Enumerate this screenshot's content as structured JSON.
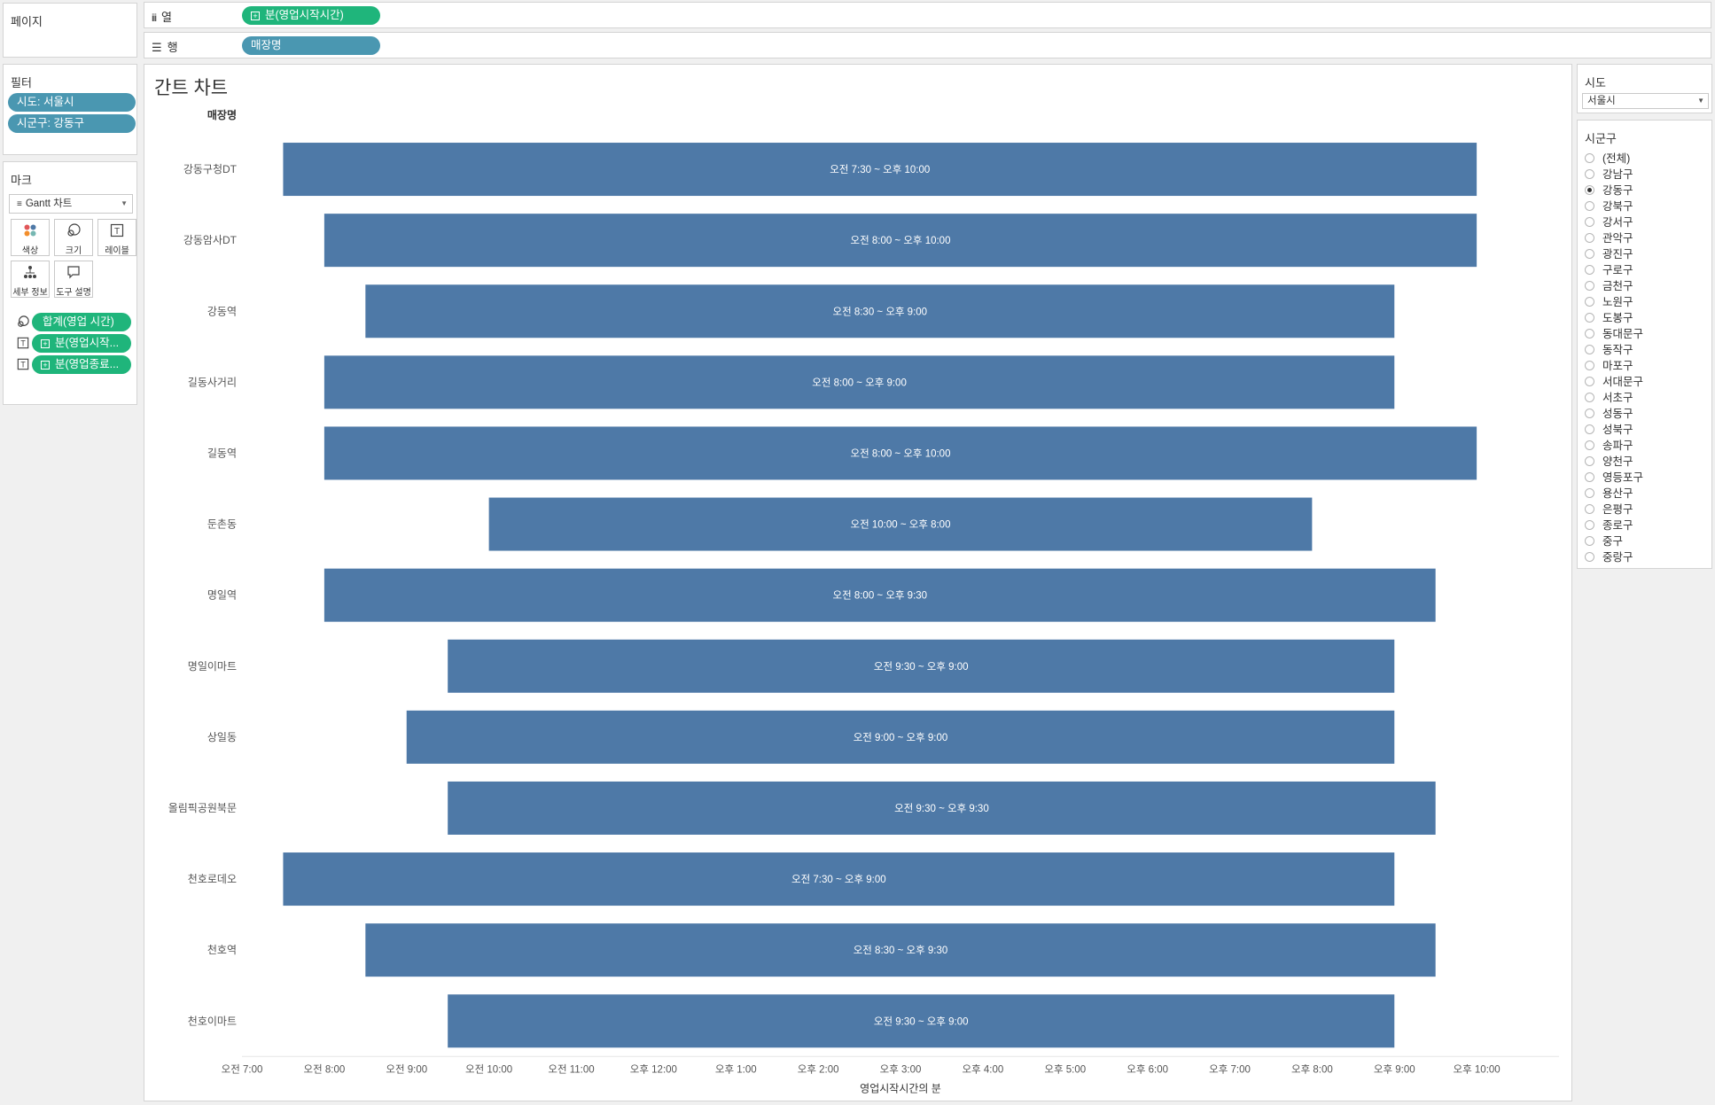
{
  "pages_panel": {
    "title": "페이지"
  },
  "columns_shelf": {
    "label": "열",
    "icon": "columns-icon",
    "pill": "분(영업시작시간)"
  },
  "rows_shelf": {
    "label": "행",
    "icon": "rows-icon",
    "pill": "매장명"
  },
  "filters": {
    "title": "필터",
    "items": [
      "시도: 서울시",
      "시군구: 강동구"
    ]
  },
  "marks": {
    "title": "마크",
    "mark_type": "Gantt 차트",
    "buttons": [
      {
        "label": "색상",
        "icon": "color-icon"
      },
      {
        "label": "크기",
        "icon": "size-icon"
      },
      {
        "label": "레이블",
        "icon": "label-icon"
      },
      {
        "label": "세부 정보",
        "icon": "detail-icon"
      },
      {
        "label": "도구 설명",
        "icon": "tooltip-icon"
      }
    ],
    "fields": [
      {
        "icon": "size-icon",
        "label": "합계(영업 시간)"
      },
      {
        "icon": "label-icon",
        "label": "분(영업시작..."
      },
      {
        "icon": "label-icon",
        "label": "분(영업종료..."
      }
    ]
  },
  "sido_filter": {
    "title": "시도",
    "value": "서울시"
  },
  "sigungu_filter": {
    "title": "시군구",
    "selected": "강동구",
    "options": [
      "(전체)",
      "강남구",
      "강동구",
      "강북구",
      "강서구",
      "관악구",
      "광진구",
      "구로구",
      "금천구",
      "노원구",
      "도봉구",
      "동대문구",
      "동작구",
      "마포구",
      "서대문구",
      "서초구",
      "성동구",
      "성북구",
      "송파구",
      "양천구",
      "영등포구",
      "용산구",
      "은평구",
      "종로구",
      "중구",
      "중랑구"
    ]
  },
  "chart_data": {
    "type": "gantt",
    "title": "간트 차트",
    "row_header": "매장명",
    "xlabel": "영업시작시간의 분",
    "color": "#4e79a7",
    "x_range_hours": [
      7,
      23
    ],
    "x_ticks": [
      {
        "hour": 7,
        "label": "오전 7:00"
      },
      {
        "hour": 8,
        "label": "오전 8:00"
      },
      {
        "hour": 9,
        "label": "오전 9:00"
      },
      {
        "hour": 10,
        "label": "오전 10:00"
      },
      {
        "hour": 11,
        "label": "오전 11:00"
      },
      {
        "hour": 12,
        "label": "오후 12:00"
      },
      {
        "hour": 13,
        "label": "오후 1:00"
      },
      {
        "hour": 14,
        "label": "오후 2:00"
      },
      {
        "hour": 15,
        "label": "오후 3:00"
      },
      {
        "hour": 16,
        "label": "오후 4:00"
      },
      {
        "hour": 17,
        "label": "오후 5:00"
      },
      {
        "hour": 18,
        "label": "오후 6:00"
      },
      {
        "hour": 19,
        "label": "오후 7:00"
      },
      {
        "hour": 20,
        "label": "오후 8:00"
      },
      {
        "hour": 21,
        "label": "오후 9:00"
      },
      {
        "hour": 22,
        "label": "오후 10:00"
      }
    ],
    "rows": [
      {
        "name": "강동구청DT",
        "start": 7.5,
        "end": 22,
        "label": "오전 7:30 ~ 오후 10:00"
      },
      {
        "name": "강동암사DT",
        "start": 8,
        "end": 22,
        "label": "오전 8:00 ~ 오후 10:00"
      },
      {
        "name": "강동역",
        "start": 8.5,
        "end": 21,
        "label": "오전 8:30 ~ 오후 9:00"
      },
      {
        "name": "길동사거리",
        "start": 8,
        "end": 21,
        "label": "오전 8:00 ~ 오후 9:00"
      },
      {
        "name": "길동역",
        "start": 8,
        "end": 22,
        "label": "오전 8:00 ~ 오후 10:00"
      },
      {
        "name": "둔촌동",
        "start": 10,
        "end": 20,
        "label": "오전 10:00 ~ 오후 8:00"
      },
      {
        "name": "명일역",
        "start": 8,
        "end": 21.5,
        "label": "오전 8:00 ~ 오후 9:30"
      },
      {
        "name": "명일이마트",
        "start": 9.5,
        "end": 21,
        "label": "오전 9:30 ~ 오후 9:00"
      },
      {
        "name": "상일동",
        "start": 9,
        "end": 21,
        "label": "오전 9:00 ~ 오후 9:00"
      },
      {
        "name": "올림픽공원북문",
        "start": 9.5,
        "end": 21.5,
        "label": "오전 9:30 ~ 오후 9:30"
      },
      {
        "name": "천호로데오",
        "start": 7.5,
        "end": 21,
        "label": "오전 7:30 ~ 오후 9:00"
      },
      {
        "name": "천호역",
        "start": 8.5,
        "end": 21.5,
        "label": "오전 8:30 ~ 오후 9:30"
      },
      {
        "name": "천호이마트",
        "start": 9.5,
        "end": 21,
        "label": "오전 9:30 ~ 오후 9:00"
      }
    ]
  }
}
